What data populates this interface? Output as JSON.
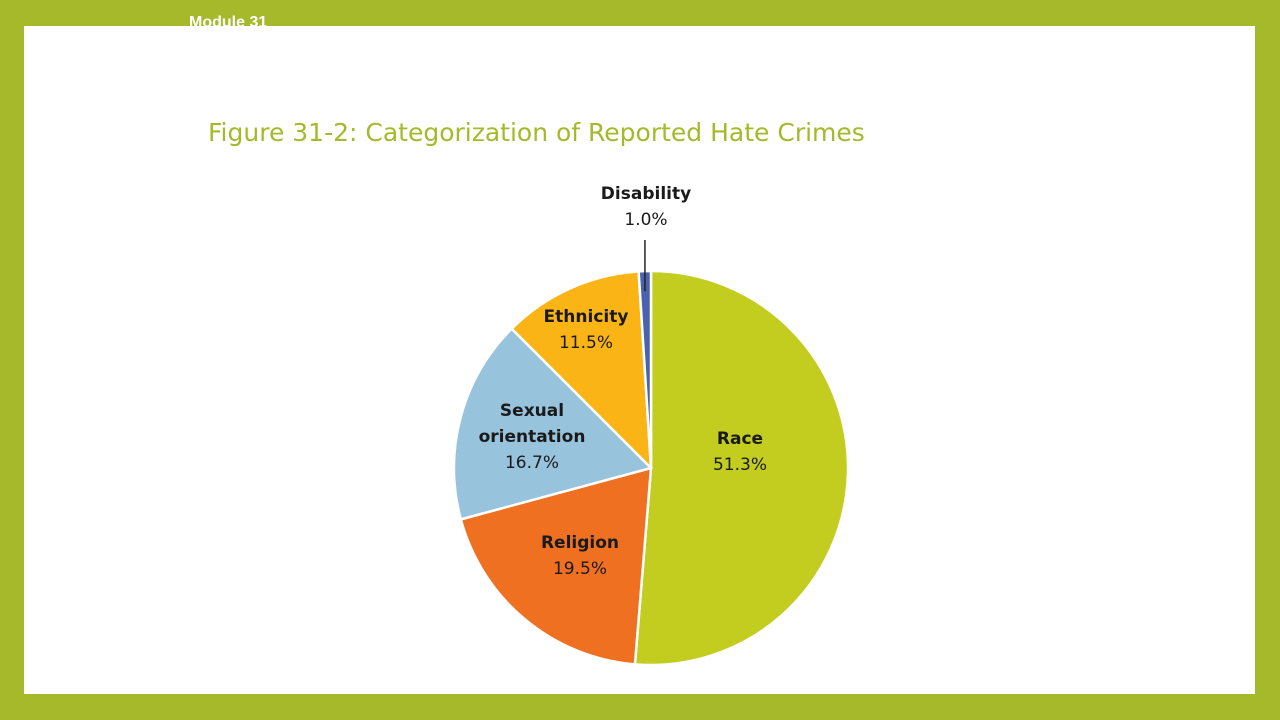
{
  "header": {
    "module_label": "Module 31"
  },
  "slide": {
    "title": "Figure 31-2: Categorization of Reported Hate Crimes"
  },
  "chart_data": {
    "type": "pie",
    "title": "Figure 31-2: Categorization of Reported Hate Crimes",
    "slices": [
      {
        "name": "Race",
        "label_lines": [
          "Race"
        ],
        "value": 51.3,
        "value_label": "51.3%",
        "color": "#c2cd1f"
      },
      {
        "name": "Religion",
        "label_lines": [
          "Religion"
        ],
        "value": 19.5,
        "value_label": "19.5%",
        "color": "#f07022"
      },
      {
        "name": "Sexual orientation",
        "label_lines": [
          "Sexual",
          "orientation"
        ],
        "value": 16.7,
        "value_label": "16.7%",
        "color": "#98c3dc"
      },
      {
        "name": "Ethnicity",
        "label_lines": [
          "Ethnicity"
        ],
        "value": 11.5,
        "value_label": "11.5%",
        "color": "#fbb415"
      },
      {
        "name": "Disability",
        "label_lines": [
          "Disability"
        ],
        "value": 1.0,
        "value_label": "1.0%",
        "color": "#4a63ae"
      }
    ]
  }
}
